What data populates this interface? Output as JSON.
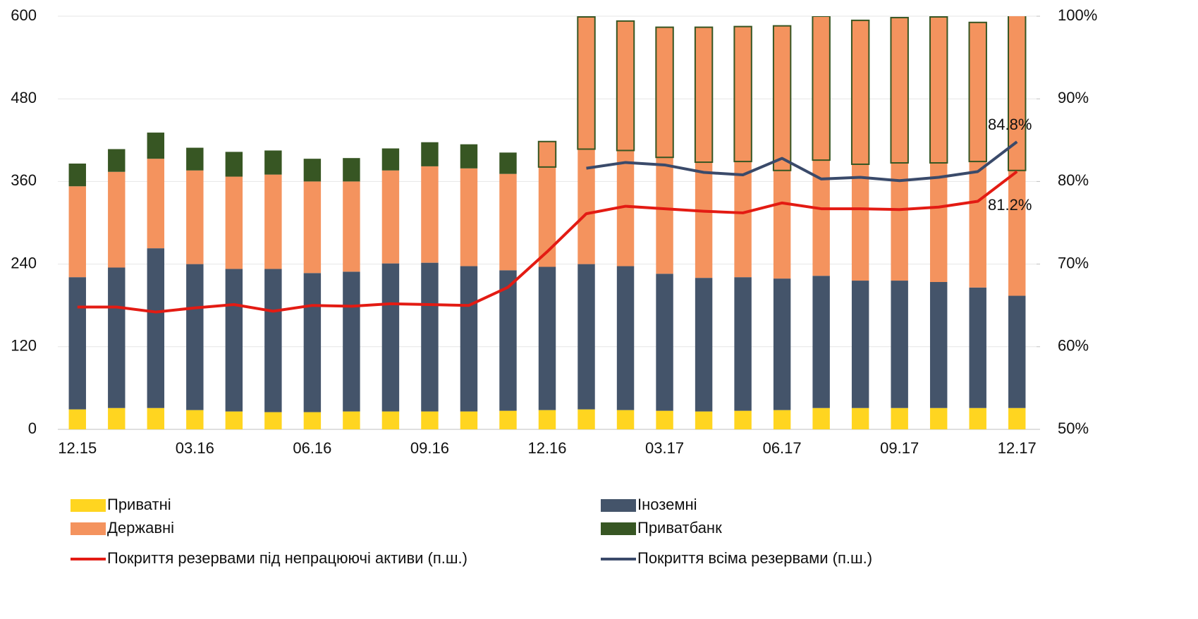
{
  "chart_data": {
    "type": "bar",
    "categories": [
      "12.15",
      null,
      null,
      "03.16",
      null,
      null,
      "06.16",
      null,
      null,
      "09.16",
      null,
      null,
      "12.16",
      null,
      null,
      "03.17",
      null,
      null,
      "06.17",
      null,
      null,
      "09.17",
      null,
      null,
      "12.17"
    ],
    "ylim": [
      0,
      600
    ],
    "yticks": [
      0,
      120,
      240,
      360,
      480,
      600
    ],
    "y2lim": [
      50,
      100
    ],
    "y2ticks": [
      {
        "value": 50,
        "label": "50%"
      },
      {
        "value": 60,
        "label": "60%"
      },
      {
        "value": 70,
        "label": "70%"
      },
      {
        "value": 80,
        "label": "80%"
      },
      {
        "value": 90,
        "label": "90%"
      },
      {
        "value": 100,
        "label": "100%"
      }
    ],
    "grid": true,
    "stacked": true,
    "series": [
      {
        "name": "Приватні",
        "color": "#FFD520",
        "values": [
          29,
          31,
          31,
          28,
          26,
          25,
          25,
          26,
          26,
          26,
          26,
          27,
          28,
          29,
          28,
          27,
          26,
          27,
          28,
          31,
          31,
          31,
          31,
          31,
          31
        ]
      },
      {
        "name": "Іноземні",
        "color": "#44546A",
        "values": [
          192,
          204,
          232,
          212,
          207,
          208,
          202,
          203,
          215,
          216,
          211,
          204,
          208,
          211,
          209,
          199,
          194,
          194,
          191,
          192,
          185,
          185,
          183,
          175,
          163
        ]
      },
      {
        "name": "Державні",
        "color": "#F4935E",
        "values": [
          132,
          139,
          130,
          136,
          134,
          137,
          133,
          131,
          135,
          140,
          142,
          140,
          145,
          167,
          168,
          169,
          168,
          168,
          157,
          168,
          169,
          171,
          173,
          183,
          182
        ]
      },
      {
        "name": "Приватбанк",
        "color": "#375623",
        "fill_colors": [
          "#375623",
          "#375623",
          "#375623",
          "#375623",
          "#375623",
          "#375623",
          "#375623",
          "#375623",
          "#375623",
          "#375623",
          "#375623",
          "#375623",
          "#F4935E",
          "#F4935E",
          "#F4935E",
          "#F4935E",
          "#F4935E",
          "#F4935E",
          "#F4935E",
          "#F4935E",
          "#F4935E",
          "#F4935E",
          "#F4935E",
          "#F4935E",
          "#F4935E"
        ],
        "values": [
          33,
          33,
          38,
          33,
          36,
          35,
          33,
          34,
          32,
          35,
          35,
          31,
          37,
          192,
          188,
          189,
          196,
          196,
          210,
          209,
          209,
          211,
          212,
          202,
          228
        ]
      },
      {
        "name": "Покриття резервами під непрацюючі активи (п.ш.)",
        "type": "line",
        "axis": "y2",
        "color": "#E31B13",
        "values": [
          64.8,
          64.8,
          64.2,
          64.7,
          65.1,
          64.3,
          65.0,
          64.9,
          65.2,
          65.1,
          65.0,
          67.2,
          71.5,
          76.1,
          77.0,
          76.7,
          76.4,
          76.2,
          77.4,
          76.7,
          76.7,
          76.6,
          76.9,
          77.6,
          81.2
        ],
        "value_labels": [
          null,
          null,
          null,
          null,
          null,
          null,
          null,
          null,
          null,
          null,
          null,
          null,
          null,
          null,
          null,
          null,
          null,
          null,
          null,
          null,
          null,
          null,
          null,
          null,
          "81.2%"
        ]
      },
      {
        "name": "Покриття всіма резервами  (п.ш.)",
        "type": "line",
        "axis": "y2",
        "color": "#3A4A6A",
        "values": [
          null,
          null,
          null,
          null,
          null,
          null,
          null,
          null,
          null,
          null,
          null,
          null,
          null,
          81.6,
          82.3,
          82.0,
          81.1,
          80.8,
          82.8,
          80.3,
          80.5,
          80.1,
          80.5,
          81.2,
          84.8
        ],
        "value_labels": [
          null,
          null,
          null,
          null,
          null,
          null,
          null,
          null,
          null,
          null,
          null,
          null,
          null,
          null,
          null,
          null,
          null,
          null,
          null,
          null,
          null,
          null,
          null,
          null,
          "84.8%"
        ]
      }
    ]
  }
}
